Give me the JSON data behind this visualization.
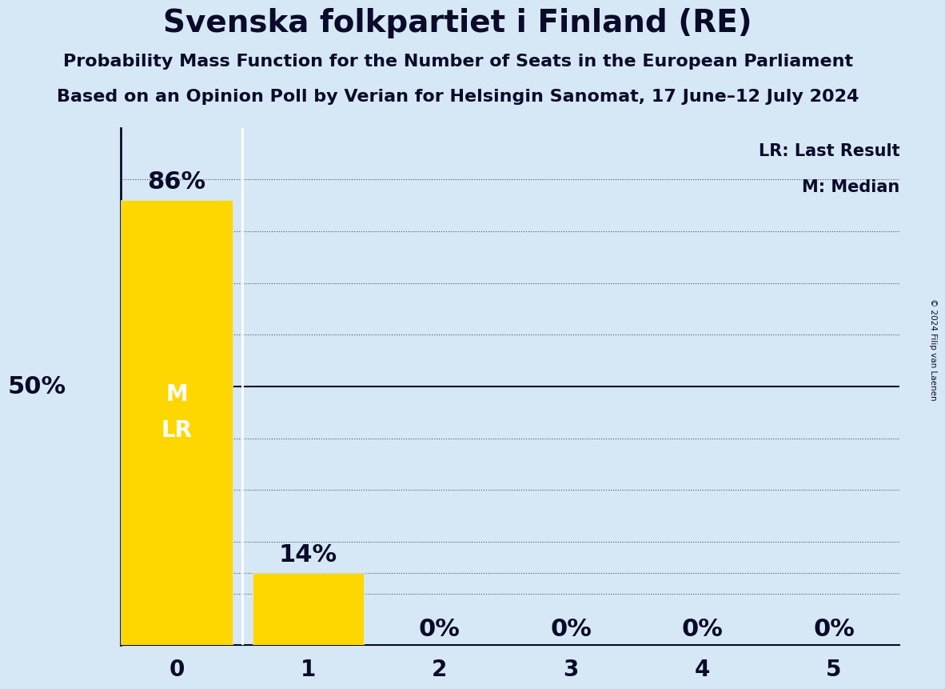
{
  "title": "Svenska folkpartiet i Finland (RE)",
  "subtitle1": "Probability Mass Function for the Number of Seats in the European Parliament",
  "subtitle2": "Based on an Opinion Poll by Verian for Helsingin Sanomat, 17 June–12 July 2024",
  "copyright": "© 2024 Filip van Laenen",
  "seats": [
    0,
    1,
    2,
    3,
    4,
    5
  ],
  "probabilities": [
    0.86,
    0.14,
    0.0,
    0.0,
    0.0,
    0.0
  ],
  "bar_color": "#FFD700",
  "background_color": "#D6E8F5",
  "bar_labels": [
    "86%",
    "14%",
    "0%",
    "0%",
    "0%",
    "0%"
  ],
  "median_seat": 0,
  "last_result_seat": 0,
  "y_label": "50%",
  "y_label_value": 0.5,
  "legend_lr": "LR: Last Result",
  "legend_m": "M: Median",
  "title_fontsize": 28,
  "subtitle_fontsize": 16,
  "tick_fontsize": 20,
  "annotation_fontsize": 22,
  "ylabel_fontsize": 22,
  "ml_fontsize": 20,
  "legend_fontsize": 15
}
